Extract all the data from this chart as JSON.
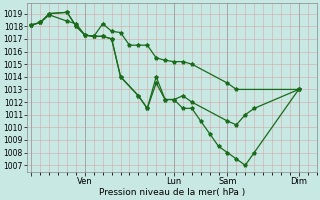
{
  "xlabel": "Pression niveau de la mer( hPa )",
  "ylim": [
    1006.5,
    1019.8
  ],
  "yticks": [
    1007,
    1008,
    1009,
    1010,
    1011,
    1012,
    1013,
    1014,
    1015,
    1016,
    1017,
    1018,
    1019
  ],
  "bg_color": "#c8e8e4",
  "grid_color": "#d8a8a8",
  "line_color": "#1a6b1a",
  "xtick_labels": [
    "",
    "Ven",
    "Lun",
    "Sam",
    "Dim"
  ],
  "xtick_positions": [
    0,
    6,
    16,
    22,
    30
  ],
  "vline_positions": [
    0,
    6,
    16,
    22,
    30
  ],
  "xlim": [
    -0.5,
    32
  ],
  "line1_x": [
    0,
    1,
    2,
    4,
    5,
    6,
    7,
    8,
    9,
    10,
    11,
    12,
    13,
    14,
    15,
    16,
    17,
    18,
    22,
    23,
    30
  ],
  "line1_y": [
    1018.1,
    1018.3,
    1018.9,
    1018.4,
    1018.2,
    1017.3,
    1017.2,
    1018.2,
    1017.6,
    1017.5,
    1016.5,
    1016.5,
    1016.5,
    1015.5,
    1015.3,
    1015.2,
    1015.2,
    1015.0,
    1013.5,
    1013.0,
    1013.0
  ],
  "line2_x": [
    0,
    1,
    2,
    4,
    5,
    6,
    7,
    8,
    9,
    10,
    12,
    13,
    14,
    15,
    16,
    17,
    18,
    22,
    23,
    24,
    25,
    30
  ],
  "line2_y": [
    1018.1,
    1018.3,
    1019.0,
    1019.1,
    1018.0,
    1017.3,
    1017.2,
    1017.2,
    1017.0,
    1014.0,
    1012.5,
    1011.5,
    1013.5,
    1012.2,
    1012.2,
    1012.5,
    1012.0,
    1010.5,
    1010.2,
    1011.0,
    1011.5,
    1013.0
  ],
  "line3_x": [
    0,
    1,
    2,
    4,
    5,
    6,
    7,
    8,
    9,
    10,
    12,
    13,
    14,
    15,
    16,
    17,
    18,
    19,
    20,
    21,
    22,
    23,
    24,
    25,
    30
  ],
  "line3_y": [
    1018.1,
    1018.3,
    1019.0,
    1019.1,
    1018.0,
    1017.3,
    1017.2,
    1017.2,
    1017.0,
    1014.0,
    1012.5,
    1011.5,
    1014.0,
    1012.2,
    1012.2,
    1011.5,
    1011.5,
    1010.5,
    1009.5,
    1008.5,
    1008.0,
    1007.5,
    1007.0,
    1008.0,
    1013.0
  ]
}
